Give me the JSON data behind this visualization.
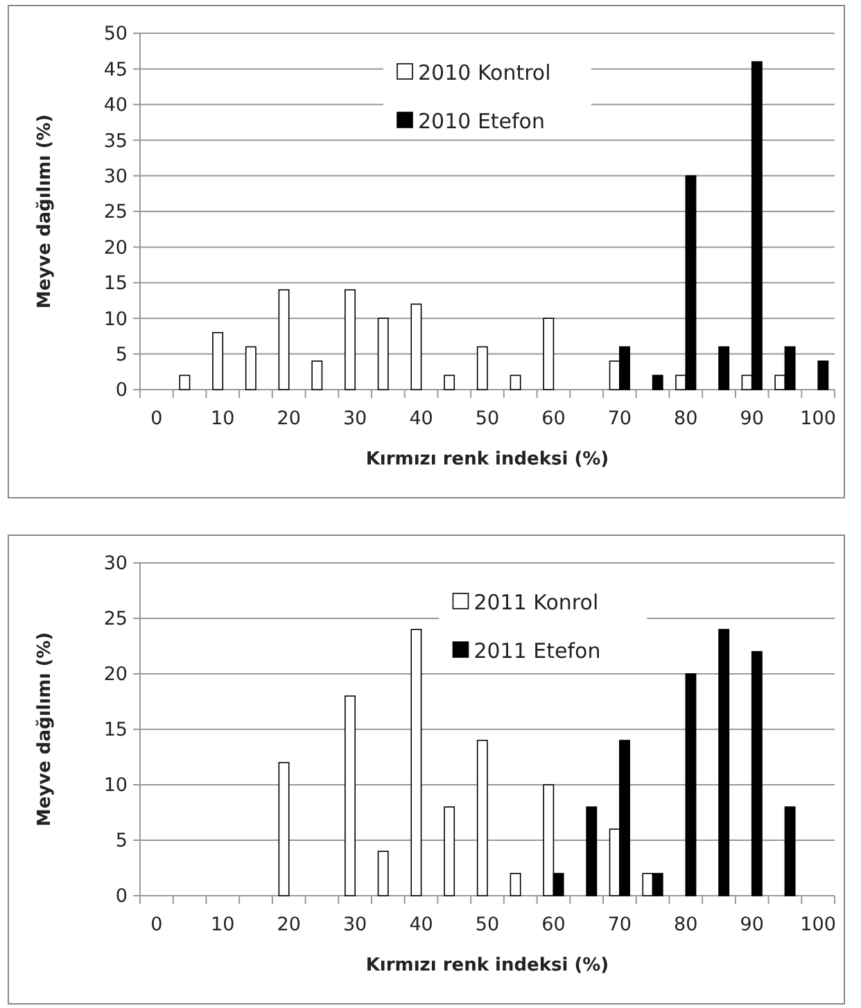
{
  "chart_data": [
    {
      "type": "bar",
      "xlabel": "Kırmızı renk indeksi (%)",
      "ylabel": "Meyve dağılımı (%)",
      "categories": [
        "0",
        null,
        "10",
        null,
        "20",
        null,
        "30",
        null,
        "40",
        null,
        "50",
        null,
        "60",
        null,
        "70",
        null,
        "80",
        null,
        "90",
        null,
        "100"
      ],
      "series": [
        {
          "name": "2010 Kontrol",
          "color": "#ffffff",
          "values": [
            null,
            2,
            8,
            6,
            14,
            4,
            14,
            10,
            12,
            2,
            6,
            2,
            10,
            null,
            4,
            null,
            2,
            null,
            2,
            2,
            null
          ]
        },
        {
          "name": "2010 Etefon",
          "color": "#000000",
          "values": [
            null,
            null,
            null,
            null,
            null,
            null,
            null,
            null,
            null,
            null,
            null,
            null,
            null,
            null,
            6,
            2,
            30,
            6,
            46,
            6,
            4
          ]
        }
      ],
      "ylim": [
        0,
        50
      ],
      "yticks": [
        0,
        5,
        10,
        15,
        20,
        25,
        30,
        35,
        40,
        45,
        50
      ],
      "grid": "y",
      "legend": "top"
    },
    {
      "type": "bar",
      "xlabel": "Kırmızı renk indeksi (%)",
      "ylabel": "Meyve dağılımı (%)",
      "categories": [
        "0",
        null,
        "10",
        null,
        "20",
        null,
        "30",
        null,
        "40",
        null,
        "50",
        null,
        "60",
        null,
        "70",
        null,
        "80",
        null,
        "90",
        null,
        "100"
      ],
      "series": [
        {
          "name": "2011 Konrol",
          "color": "#ffffff",
          "values": [
            null,
            null,
            null,
            null,
            12,
            null,
            18,
            4,
            24,
            8,
            14,
            2,
            10,
            null,
            6,
            2,
            null,
            null,
            null,
            null,
            null
          ]
        },
        {
          "name": "2011 Etefon",
          "color": "#000000",
          "values": [
            null,
            null,
            null,
            null,
            null,
            null,
            null,
            null,
            null,
            null,
            null,
            null,
            2,
            8,
            14,
            2,
            20,
            24,
            22,
            8,
            null
          ]
        }
      ],
      "ylim": [
        0,
        30
      ],
      "yticks": [
        0,
        5,
        10,
        15,
        20,
        25,
        30
      ],
      "grid": "y",
      "legend": "top right"
    }
  ]
}
